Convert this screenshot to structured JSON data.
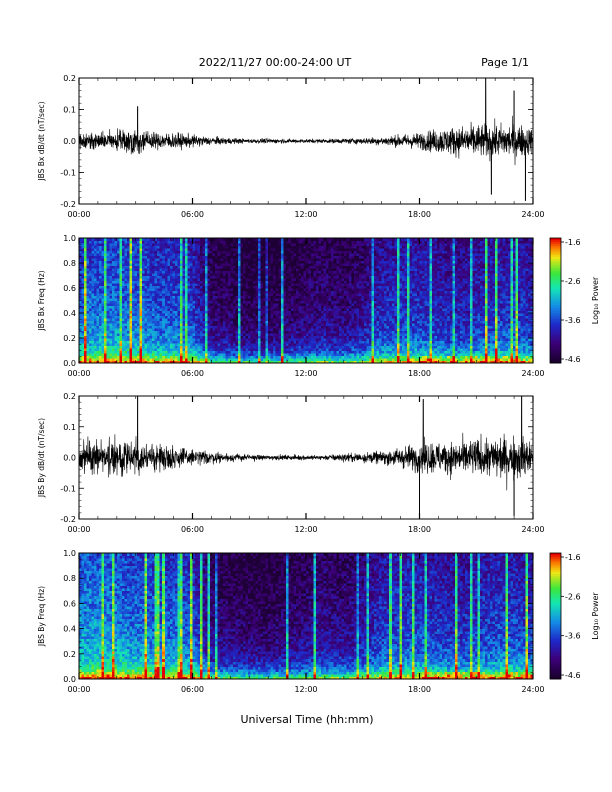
{
  "header": {
    "title": "2022/11/27  00:00-24:00 UT",
    "page": "Page 1/1"
  },
  "x_axis": {
    "ticks": [
      "00:00",
      "06:00",
      "12:00",
      "18:00",
      "24:00"
    ],
    "label": "Universal Time (hh:mm)"
  },
  "colorbar": {
    "ticks": [
      "-1.6",
      "-2.6",
      "-3.6",
      "-4.6"
    ],
    "label": "Log₁₀ Power"
  },
  "chart_data": [
    {
      "type": "line",
      "ylabel": "JBS Bx dB/dt (nT/sec)",
      "x_range_hours": [
        0,
        24
      ],
      "ylim": [
        -0.2,
        0.2
      ],
      "yticks": [
        "0.2",
        "0.1",
        "0.0",
        "-0.1",
        "-0.2"
      ],
      "envelope": {
        "hours": [
          0,
          1,
          2,
          3,
          4,
          5,
          6,
          7,
          8,
          9,
          10,
          11,
          12,
          13,
          14,
          15,
          16,
          17,
          18,
          19,
          20,
          21,
          22,
          23,
          24
        ],
        "amplitude": [
          0.04,
          0.04,
          0.05,
          0.06,
          0.04,
          0.04,
          0.03,
          0.02,
          0.015,
          0.01,
          0.012,
          0.01,
          0.01,
          0.01,
          0.012,
          0.015,
          0.02,
          0.03,
          0.04,
          0.06,
          0.07,
          0.08,
          0.08,
          0.09,
          0.06
        ],
        "spikes": [
          {
            "hour": 3.1,
            "value": 0.11
          },
          {
            "hour": 21.5,
            "value": 0.2
          },
          {
            "hour": 21.8,
            "value": -0.17
          },
          {
            "hour": 23.6,
            "value": -0.19
          },
          {
            "hour": 23.0,
            "value": 0.16
          }
        ]
      }
    },
    {
      "type": "heatmap",
      "ylabel": "JBS Bx Freq (Hz)",
      "x_range_hours": [
        0,
        24
      ],
      "ylim": [
        0,
        1.0
      ],
      "yticks": [
        "1.0",
        "0.8",
        "0.6",
        "0.4",
        "0.2",
        "0.0"
      ],
      "zlim": [
        -4.6,
        -1.6
      ],
      "activity_by_hour": [
        0.75,
        0.8,
        0.8,
        0.75,
        0.7,
        0.7,
        0.65,
        0.3,
        0.25,
        0.2,
        0.2,
        0.25,
        0.3,
        0.35,
        0.3,
        0.4,
        0.55,
        0.6,
        0.6,
        0.55,
        0.5,
        0.55,
        0.6,
        0.6,
        0.55
      ]
    },
    {
      "type": "line",
      "ylabel": "JBS By dB/dt (nT/sec)",
      "x_range_hours": [
        0,
        24
      ],
      "ylim": [
        -0.2,
        0.2
      ],
      "yticks": [
        "0.2",
        "0.1",
        "0.0",
        "-0.1",
        "-0.2"
      ],
      "envelope": {
        "hours": [
          0,
          1,
          2,
          3,
          4,
          5,
          6,
          7,
          8,
          9,
          10,
          11,
          12,
          13,
          14,
          15,
          16,
          17,
          18,
          19,
          20,
          21,
          22,
          23,
          24
        ],
        "amplitude": [
          0.08,
          0.09,
          0.08,
          0.08,
          0.06,
          0.06,
          0.04,
          0.03,
          0.02,
          0.015,
          0.012,
          0.012,
          0.012,
          0.012,
          0.02,
          0.025,
          0.03,
          0.05,
          0.07,
          0.08,
          0.08,
          0.09,
          0.1,
          0.11,
          0.08
        ],
        "spikes": [
          {
            "hour": 3.1,
            "value": 0.2
          },
          {
            "hour": 18.0,
            "value": -0.2
          },
          {
            "hour": 18.2,
            "value": 0.19
          },
          {
            "hour": 23.4,
            "value": 0.2
          },
          {
            "hour": 23.0,
            "value": -0.19
          }
        ]
      }
    },
    {
      "type": "heatmap",
      "ylabel": "JBS By Freq (Hz)",
      "x_range_hours": [
        0,
        24
      ],
      "ylim": [
        0,
        1.0
      ],
      "yticks": [
        "1.0",
        "0.8",
        "0.6",
        "0.4",
        "0.2",
        "0.0"
      ],
      "zlim": [
        -4.6,
        -1.6
      ],
      "activity_by_hour": [
        0.85,
        0.9,
        0.85,
        0.8,
        0.75,
        0.75,
        0.7,
        0.35,
        0.3,
        0.25,
        0.25,
        0.3,
        0.35,
        0.4,
        0.35,
        0.45,
        0.6,
        0.65,
        0.65,
        0.6,
        0.55,
        0.6,
        0.65,
        0.65,
        0.6
      ]
    }
  ]
}
